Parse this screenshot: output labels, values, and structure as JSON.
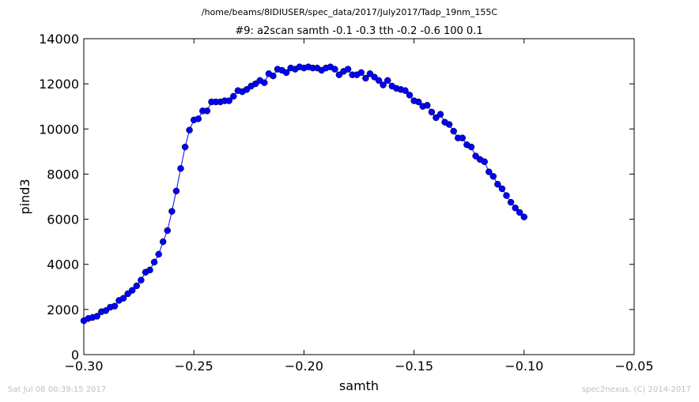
{
  "suptitle": "/home/beams/8IDIUSER/spec_data/2017/July2017/Tadp_19nm_155C",
  "footer_left": "Sat Jul 08 00:39:15 2017",
  "footer_right": "spec2nexus, (C) 2014-2017",
  "chart_data": {
    "type": "line",
    "title": "#9: a2scan  samth -0.1 -0.3  tth -0.2 -0.6  100 0.1",
    "xlabel": "samth",
    "ylabel": "pind3",
    "xlim": [
      -0.3,
      -0.05
    ],
    "ylim": [
      0,
      14000
    ],
    "xticks": [
      -0.3,
      -0.25,
      -0.2,
      -0.15,
      -0.1,
      -0.05
    ],
    "xtick_labels": [
      "−0.30",
      "−0.25",
      "−0.20",
      "−0.15",
      "−0.10",
      "−0.05"
    ],
    "yticks": [
      0,
      2000,
      4000,
      6000,
      8000,
      10000,
      12000,
      14000
    ],
    "ytick_labels": [
      "0",
      "2000",
      "4000",
      "6000",
      "8000",
      "10000",
      "12000",
      "14000"
    ],
    "grid": false,
    "line_color": "#0000ff",
    "marker_color": "#0000ff",
    "series": [
      {
        "x": [
          -0.3,
          -0.298,
          -0.296,
          -0.294,
          -0.292,
          -0.29,
          -0.288,
          -0.286,
          -0.284,
          -0.282,
          -0.28,
          -0.278,
          -0.276,
          -0.274,
          -0.272,
          -0.27,
          -0.268,
          -0.266,
          -0.264,
          -0.262,
          -0.26,
          -0.258,
          -0.256,
          -0.254,
          -0.252,
          -0.25,
          -0.248,
          -0.246,
          -0.244,
          -0.242,
          -0.24,
          -0.238,
          -0.236,
          -0.234,
          -0.232,
          -0.23,
          -0.228,
          -0.226,
          -0.224,
          -0.222,
          -0.22,
          -0.218,
          -0.216,
          -0.214,
          -0.212,
          -0.21,
          -0.208,
          -0.206,
          -0.204,
          -0.202,
          -0.2,
          -0.198,
          -0.196,
          -0.194,
          -0.192,
          -0.19,
          -0.188,
          -0.186,
          -0.184,
          -0.182,
          -0.18,
          -0.178,
          -0.176,
          -0.174,
          -0.172,
          -0.17,
          -0.168,
          -0.166,
          -0.164,
          -0.162,
          -0.16,
          -0.158,
          -0.156,
          -0.154,
          -0.152,
          -0.15,
          -0.148,
          -0.146,
          -0.144,
          -0.142,
          -0.14,
          -0.138,
          -0.136,
          -0.134,
          -0.132,
          -0.13,
          -0.128,
          -0.126,
          -0.124,
          -0.122,
          -0.12,
          -0.118,
          -0.116,
          -0.114,
          -0.112,
          -0.11,
          -0.108,
          -0.106,
          -0.104,
          -0.102,
          -0.1
        ],
        "y": [
          1500,
          1600,
          1650,
          1700,
          1900,
          1950,
          2100,
          2150,
          2400,
          2500,
          2700,
          2850,
          3050,
          3300,
          3650,
          3750,
          4100,
          4450,
          5000,
          5500,
          6350,
          7250,
          8250,
          9200,
          9950,
          10400,
          10450,
          10800,
          10800,
          11200,
          11200,
          11200,
          11250,
          11250,
          11450,
          11700,
          11650,
          11750,
          11900,
          12000,
          12150,
          12050,
          12450,
          12350,
          12650,
          12600,
          12500,
          12700,
          12650,
          12750,
          12700,
          12750,
          12700,
          12700,
          12600,
          12700,
          12750,
          12650,
          12400,
          12550,
          12650,
          12400,
          12400,
          12500,
          12250,
          12450,
          12300,
          12150,
          11950,
          12150,
          11900,
          11800,
          11750,
          11700,
          11500,
          11250,
          11200,
          11000,
          11050,
          10750,
          10500,
          10650,
          10300,
          10200,
          9900,
          9600,
          9600,
          9300,
          9200,
          8800,
          8650,
          8550,
          8100,
          7900,
          7550,
          7350,
          7050,
          6750,
          6500,
          6300,
          6100
        ]
      }
    ]
  }
}
